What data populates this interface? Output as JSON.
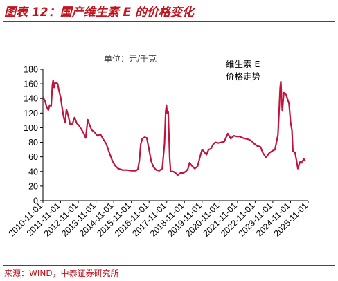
{
  "header": {
    "title": "图表 12：国产维生素 E 的价格变化"
  },
  "footer": {
    "source": "来源：WIND，中泰证券研究所"
  },
  "chart_data": {
    "type": "line",
    "title": "",
    "unit_label": "单位：元/千克",
    "xlabel": "",
    "ylabel": "",
    "ylim": [
      0,
      180
    ],
    "yticks": [
      "0",
      "20",
      "40",
      "60",
      "80",
      "100",
      "120",
      "140",
      "160",
      "180"
    ],
    "xlim": [
      "2010-11-01",
      "2025-11-01"
    ],
    "xticks": [
      "2010-11-01",
      "2011-11-01",
      "2012-11-01",
      "2013-11-01",
      "2014-11-01",
      "2015-11-01",
      "2016-11-01",
      "2017-11-01",
      "2018-11-01",
      "2019-11-01",
      "2020-11-01",
      "2021-11-01",
      "2022-11-01",
      "2023-11-01",
      "2024-11-01",
      "2025-11-01"
    ],
    "grid": false,
    "legend": {
      "position": "top-right",
      "lines": [
        "维生素 E",
        "价格走势"
      ]
    },
    "colors": {
      "line": "#c0143c",
      "title": "#c0141e"
    },
    "series": [
      {
        "name": "维生素 E 价格走势",
        "points": [
          [
            "2010-11-01",
            142
          ],
          [
            "2010-12-15",
            136
          ],
          [
            "2011-01-20",
            128
          ],
          [
            "2011-02-20",
            124
          ],
          [
            "2011-03-20",
            131
          ],
          [
            "2011-04-20",
            130
          ],
          [
            "2011-05-15",
            158
          ],
          [
            "2011-06-01",
            165
          ],
          [
            "2011-06-20",
            155
          ],
          [
            "2011-07-15",
            162
          ],
          [
            "2011-09-01",
            160
          ],
          [
            "2011-10-01",
            150
          ],
          [
            "2011-11-01",
            142
          ],
          [
            "2011-12-01",
            128
          ],
          [
            "2012-01-01",
            115
          ],
          [
            "2012-02-01",
            107
          ],
          [
            "2012-03-01",
            125
          ],
          [
            "2012-04-01",
            118
          ],
          [
            "2012-05-15",
            105
          ],
          [
            "2012-07-01",
            105
          ],
          [
            "2012-08-15",
            114
          ],
          [
            "2012-10-01",
            106
          ],
          [
            "2012-11-15",
            103
          ],
          [
            "2013-01-01",
            98
          ],
          [
            "2013-02-15",
            93
          ],
          [
            "2013-04-01",
            86
          ],
          [
            "2013-05-15",
            111
          ],
          [
            "2013-06-15",
            105
          ],
          [
            "2013-08-01",
            97
          ],
          [
            "2013-10-01",
            94
          ],
          [
            "2013-12-01",
            89
          ],
          [
            "2014-02-01",
            91
          ],
          [
            "2014-04-01",
            84
          ],
          [
            "2014-06-01",
            78
          ],
          [
            "2014-08-01",
            66
          ],
          [
            "2014-10-01",
            55
          ],
          [
            "2014-12-01",
            48
          ],
          [
            "2015-02-01",
            44
          ],
          [
            "2015-05-01",
            42
          ],
          [
            "2015-08-01",
            42
          ],
          [
            "2015-11-01",
            41
          ],
          [
            "2016-02-01",
            41
          ],
          [
            "2016-03-15",
            43
          ],
          [
            "2016-04-15",
            55
          ],
          [
            "2016-05-15",
            78
          ],
          [
            "2016-06-15",
            85
          ],
          [
            "2016-08-01",
            87
          ],
          [
            "2016-09-15",
            86
          ],
          [
            "2016-11-01",
            70
          ],
          [
            "2016-12-15",
            54
          ],
          [
            "2017-02-01",
            46
          ],
          [
            "2017-04-01",
            42
          ],
          [
            "2017-06-01",
            41
          ],
          [
            "2017-08-01",
            44
          ],
          [
            "2017-09-15",
            78
          ],
          [
            "2017-10-10",
            122
          ],
          [
            "2017-10-25",
            131
          ],
          [
            "2017-11-10",
            120
          ],
          [
            "2017-12-01",
            122
          ],
          [
            "2018-01-01",
            58
          ],
          [
            "2018-01-20",
            40
          ],
          [
            "2018-03-15",
            40
          ],
          [
            "2018-05-01",
            38
          ],
          [
            "2018-06-15",
            35
          ],
          [
            "2018-08-15",
            38
          ],
          [
            "2018-10-15",
            38
          ],
          [
            "2018-12-15",
            41
          ],
          [
            "2019-01-15",
            44
          ],
          [
            "2019-02-15",
            52
          ],
          [
            "2019-04-01",
            48
          ],
          [
            "2019-06-01",
            44
          ],
          [
            "2019-08-01",
            47
          ],
          [
            "2019-09-15",
            59
          ],
          [
            "2019-11-01",
            70
          ],
          [
            "2019-12-15",
            67
          ],
          [
            "2020-02-01",
            63
          ],
          [
            "2020-03-15",
            70
          ],
          [
            "2020-05-01",
            71
          ],
          [
            "2020-06-15",
            77
          ],
          [
            "2020-08-01",
            80
          ],
          [
            "2020-10-01",
            79
          ],
          [
            "2020-12-01",
            80
          ],
          [
            "2021-02-01",
            81
          ],
          [
            "2021-04-15",
            92
          ],
          [
            "2021-06-15",
            85
          ],
          [
            "2021-08-15",
            89
          ],
          [
            "2021-10-15",
            88
          ],
          [
            "2021-12-15",
            88
          ],
          [
            "2022-02-15",
            86
          ],
          [
            "2022-04-15",
            85
          ],
          [
            "2022-06-15",
            84
          ],
          [
            "2022-08-15",
            82
          ],
          [
            "2022-10-15",
            78
          ],
          [
            "2022-12-15",
            75
          ],
          [
            "2023-02-15",
            74
          ],
          [
            "2023-04-15",
            65
          ],
          [
            "2023-06-15",
            59
          ],
          [
            "2023-08-15",
            65
          ],
          [
            "2023-10-15",
            68
          ],
          [
            "2023-12-15",
            70
          ],
          [
            "2024-01-15",
            80
          ],
          [
            "2024-02-15",
            90
          ],
          [
            "2024-03-15",
            130
          ],
          [
            "2024-04-01",
            155
          ],
          [
            "2024-04-15",
            163
          ],
          [
            "2024-05-01",
            140
          ],
          [
            "2024-05-15",
            123
          ],
          [
            "2024-06-15",
            148
          ],
          [
            "2024-08-01",
            145
          ],
          [
            "2024-10-01",
            133
          ],
          [
            "2024-11-01",
            108
          ],
          [
            "2024-12-01",
            96
          ],
          [
            "2024-12-20",
            68
          ],
          [
            "2025-02-01",
            66
          ],
          [
            "2025-03-01",
            56
          ],
          [
            "2025-04-01",
            44
          ],
          [
            "2025-05-15",
            53
          ],
          [
            "2025-06-15",
            52
          ],
          [
            "2025-08-01",
            57
          ],
          [
            "2025-09-01",
            55
          ]
        ]
      }
    ]
  }
}
